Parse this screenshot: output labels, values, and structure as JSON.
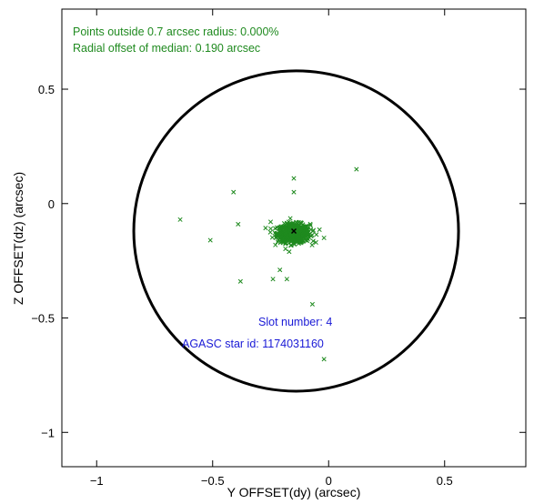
{
  "chart_data": {
    "type": "scatter",
    "xlabel": "Y OFFSET(dy) (arcsec)",
    "ylabel": "Z OFFSET(dz) (arcsec)",
    "xlim": [
      -1.15,
      0.85
    ],
    "ylim": [
      -1.15,
      0.85
    ],
    "x_ticks": [
      -1,
      -0.5,
      0,
      0.5
    ],
    "x_tick_labels": [
      "−1",
      "−0.5",
      "0",
      "0.5"
    ],
    "y_ticks": [
      -1,
      -0.5,
      0,
      0.5
    ],
    "y_tick_labels": [
      "−1",
      "−0.5",
      "0",
      "0.5"
    ],
    "grid": false,
    "annotations": {
      "points_outside": "Points outside 0.7 arcsec radius: 0.000%",
      "radial_offset": "Radial offset of median: 0.190 arcsec",
      "slot_number": "Slot number: 4",
      "agasc_id": "AGASC star id: 1174031160"
    },
    "circle": {
      "center": [
        -0.14,
        -0.12
      ],
      "radius": 0.7
    },
    "median": [
      -0.15,
      -0.12
    ],
    "cluster": {
      "center": [
        -0.15,
        -0.13
      ],
      "sigma": [
        0.035,
        0.02
      ],
      "count": 650
    },
    "outliers": [
      [
        0.12,
        0.15
      ],
      [
        -0.15,
        0.11
      ],
      [
        -0.41,
        0.05
      ],
      [
        -0.15,
        0.05
      ],
      [
        -0.64,
        -0.07
      ],
      [
        -0.39,
        -0.09
      ],
      [
        -0.51,
        -0.16
      ],
      [
        -0.25,
        -0.08
      ],
      [
        -0.38,
        -0.34
      ],
      [
        -0.24,
        -0.33
      ],
      [
        -0.18,
        -0.33
      ],
      [
        -0.07,
        -0.44
      ],
      [
        -0.02,
        -0.68
      ],
      [
        -0.21,
        -0.29
      ],
      [
        -0.02,
        -0.15
      ]
    ],
    "colors": {
      "points": "#1f8a1f",
      "circle": "#000000",
      "median": "#000000",
      "annotation_top": "#1f8a1f",
      "annotation_bottom": "#1a1ad6"
    }
  }
}
